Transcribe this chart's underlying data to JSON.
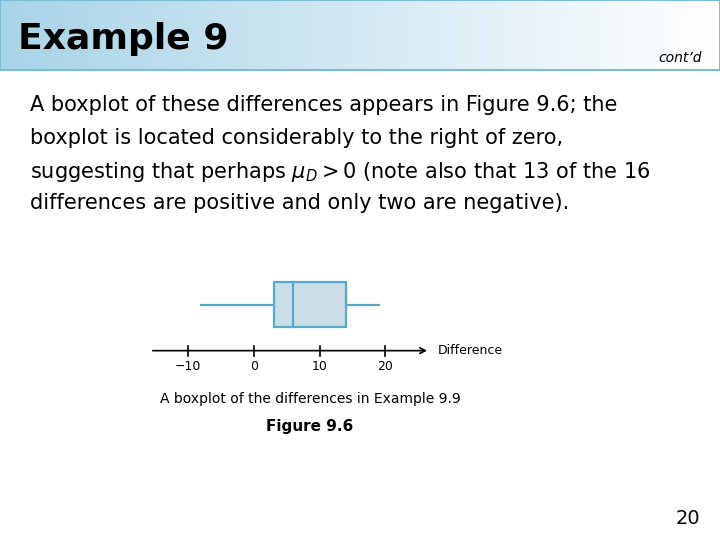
{
  "title": "Example 9",
  "contd": "cont’d",
  "header_bg_left": "#a8d4e8",
  "header_bg_right": "#ffffff",
  "header_border_color": "#7bbbd4",
  "header_text_color": "#000000",
  "body_line1": "A boxplot of these differences appears in Figure 9.6; the",
  "body_line2": "boxplot is located considerably to the right of zero,",
  "body_line3_pre": "suggesting that perhaps ",
  "body_line3_mid": "$\\mu_D > 0$",
  "body_line3_post": " (note also that 13 of the 16",
  "body_line4": "differences are positive and only two are negative).",
  "boxplot_whisker_low": -8,
  "boxplot_q1": 3,
  "boxplot_median": 6,
  "boxplot_q3": 14,
  "boxplot_whisker_high": 19,
  "boxplot_box_color": "#ccdde8",
  "boxplot_line_color": "#55aacc",
  "axis_data_min": -15,
  "axis_data_max": 26,
  "axis_ticks": [
    -10,
    0,
    10,
    20
  ],
  "axis_label": "Difference",
  "caption_line1": "A boxplot of the differences in Example 9.9",
  "caption_line2": "Figure 9.6",
  "page_number": "20",
  "bg_color": "#ffffff"
}
